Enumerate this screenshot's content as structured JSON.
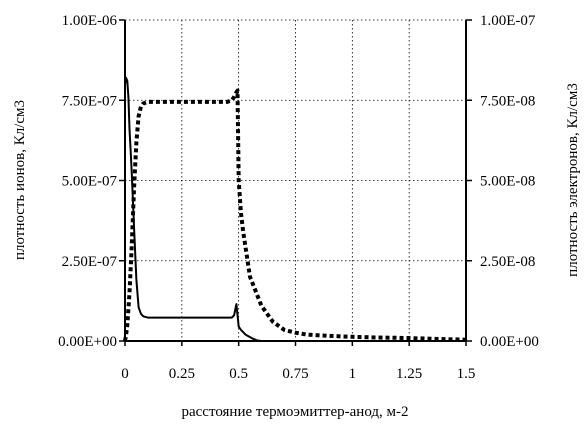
{
  "chart_data": {
    "type": "line",
    "xlabel": "расстояние термоэмиттер-анод, м-2",
    "ylabel_left": "плотность ионов, Кл/см3",
    "ylabel_right": "плотность электронов, Кл/см3",
    "x_ticks": [
      "0",
      "0.25",
      "0.5",
      "0.75",
      "1",
      "1.25",
      "1.5"
    ],
    "y_left_ticks": [
      "0.00E+00",
      "2.50E-07",
      "5.00E-07",
      "7.50E-07",
      "1.00E-06"
    ],
    "y_right_ticks": [
      "0.00E+00",
      "2.50E-08",
      "5.00E-08",
      "7.50E-08",
      "1.00E-07"
    ],
    "xlim": [
      0,
      1.5
    ],
    "ylim_left": [
      0,
      1e-06
    ],
    "ylim_right": [
      0,
      1e-07
    ],
    "grid": true,
    "series": [
      {
        "axis": "left",
        "style": "solid",
        "color": "#000000",
        "x": [
          0,
          0.005,
          0.01,
          0.015,
          0.02,
          0.025,
          0.03,
          0.04,
          0.05,
          0.06,
          0.07,
          0.08,
          0.1,
          0.15,
          0.2,
          0.3,
          0.4,
          0.47,
          0.48,
          0.49,
          0.5,
          0.51,
          0.53,
          0.56,
          0.58,
          0.6,
          0.7,
          0.8,
          1.0,
          1.2,
          1.4,
          1.5
        ],
        "y": [
          8e-07,
          8.2e-07,
          8.1e-07,
          7.6e-07,
          6.6e-07,
          5.9e-07,
          5.2e-07,
          3.5e-07,
          1.9e-07,
          1.05e-07,
          8.5e-08,
          7.7e-08,
          7.3e-08,
          7.3e-08,
          7.3e-08,
          7.3e-08,
          7.3e-08,
          7.3e-08,
          8e-08,
          1.15e-07,
          4.5e-08,
          3.5e-08,
          2e-08,
          8e-09,
          2e-09,
          0,
          0,
          0,
          0,
          0,
          0,
          0
        ]
      },
      {
        "axis": "right",
        "style": "dashed",
        "color": "#000000",
        "x": [
          0,
          0.005,
          0.01,
          0.02,
          0.03,
          0.04,
          0.05,
          0.06,
          0.07,
          0.08,
          0.1,
          0.15,
          0.2,
          0.3,
          0.4,
          0.45,
          0.47,
          0.48,
          0.49,
          0.495,
          0.5,
          0.51,
          0.52,
          0.55,
          0.6,
          0.65,
          0.7,
          0.75,
          0.8,
          0.9,
          1.0,
          1.1,
          1.2,
          1.3,
          1.4,
          1.5
        ],
        "y": [
          0,
          2e-09,
          5e-09,
          1.5e-08,
          3e-08,
          4.8e-08,
          6.2e-08,
          7e-08,
          7.3e-08,
          7.4e-08,
          7.45e-08,
          7.45e-08,
          7.45e-08,
          7.45e-08,
          7.45e-08,
          7.45e-08,
          7.5e-08,
          7.6e-08,
          7.75e-08,
          7.8e-08,
          5e-08,
          4e-08,
          3.4e-08,
          2e-08,
          1.1e-08,
          6e-09,
          3.5e-09,
          2.6e-09,
          2e-09,
          1.6e-09,
          1.3e-09,
          1.1e-09,
          1e-09,
          8e-10,
          6e-10,
          4e-10
        ]
      }
    ]
  }
}
